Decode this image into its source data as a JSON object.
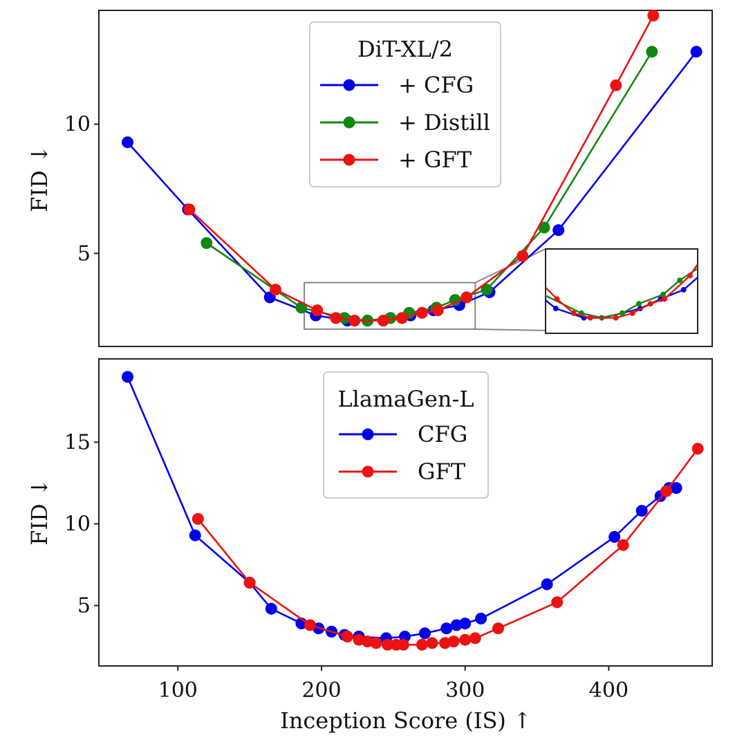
{
  "chart_data": [
    {
      "type": "line",
      "panel": "top",
      "title": "",
      "xlabel": "",
      "ylabel": "FID ↓",
      "xlim": [
        45,
        472
      ],
      "ylim": [
        1.4,
        14.4
      ],
      "yticks": [
        5,
        10
      ],
      "yticklabels": [
        "5",
        "10"
      ],
      "legend": {
        "title": "DiT-XL/2",
        "position": "top-center"
      },
      "series": [
        {
          "name": "+ CFG",
          "color": "#0000ee",
          "x": [
            65,
            107,
            164,
            196,
            218,
            232,
            248,
            262,
            278,
            296,
            317,
            365,
            461
          ],
          "y": [
            9.3,
            6.7,
            3.3,
            2.6,
            2.4,
            2.4,
            2.5,
            2.6,
            2.8,
            3.0,
            3.5,
            5.9,
            12.8
          ]
        },
        {
          "name": "+ Distill",
          "color": "#118811",
          "x": [
            120,
            186,
            216,
            232,
            248,
            261,
            280,
            293,
            315,
            355,
            430
          ],
          "y": [
            5.4,
            2.9,
            2.5,
            2.4,
            2.5,
            2.7,
            2.9,
            3.2,
            3.6,
            6.0,
            12.8
          ]
        },
        {
          "name": "+ GFT",
          "color": "#ee1111",
          "x": [
            108,
            168,
            197,
            210,
            223,
            243,
            256,
            270,
            281,
            301,
            340,
            405,
            431
          ],
          "y": [
            6.7,
            3.6,
            2.8,
            2.5,
            2.4,
            2.4,
            2.5,
            2.7,
            2.8,
            3.3,
            4.9,
            11.5,
            14.2
          ]
        }
      ],
      "inset": {
        "xlim": [
          188,
          307
        ],
        "ylim": [
          2.07,
          3.87
        ]
      }
    },
    {
      "type": "line",
      "panel": "bottom",
      "title": "",
      "xlabel": "Inception Score (IS) ↑",
      "ylabel": "FID ↓",
      "xlim": [
        45,
        472
      ],
      "ylim": [
        1.3,
        20.1
      ],
      "xticks": [
        100,
        200,
        300,
        400
      ],
      "xticklabels": [
        "100",
        "200",
        "300",
        "400"
      ],
      "yticks": [
        5,
        10,
        15
      ],
      "yticklabels": [
        "5",
        "10",
        "15"
      ],
      "legend": {
        "title": "LlamaGen-L",
        "position": "top-center"
      },
      "series": [
        {
          "name": "CFG",
          "color": "#0000ee",
          "x": [
            65,
            112,
            150,
            165,
            186,
            198,
            207,
            216,
            226,
            245,
            258,
            272,
            287,
            294,
            300,
            311,
            357,
            404,
            423,
            436,
            442,
            447
          ],
          "y": [
            19.0,
            9.3,
            6.4,
            4.8,
            3.9,
            3.6,
            3.4,
            3.2,
            3.1,
            3.0,
            3.1,
            3.3,
            3.6,
            3.8,
            3.9,
            4.2,
            6.3,
            9.2,
            10.8,
            11.7,
            12.2,
            12.2
          ]
        },
        {
          "name": "GFT",
          "color": "#ee1111",
          "x": [
            114,
            150,
            192,
            218,
            226,
            232,
            238,
            246,
            252,
            257,
            270,
            277,
            286,
            292,
            300,
            307,
            323,
            364,
            410,
            440,
            462
          ],
          "y": [
            10.3,
            6.4,
            3.8,
            3.1,
            2.9,
            2.8,
            2.7,
            2.6,
            2.6,
            2.6,
            2.6,
            2.7,
            2.7,
            2.8,
            2.9,
            3.0,
            3.6,
            5.2,
            8.7,
            12.0,
            14.6
          ]
        }
      ]
    }
  ]
}
